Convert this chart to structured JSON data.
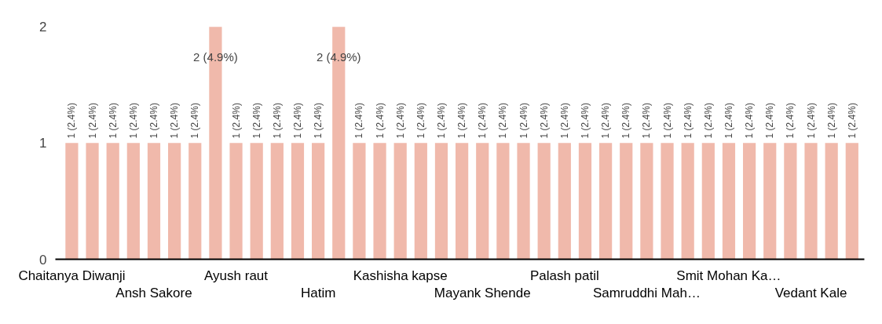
{
  "chart_data": {
    "type": "bar",
    "categories": [
      "Chaitanya Diwanji",
      null,
      null,
      null,
      "Ansh Sakore",
      null,
      null,
      null,
      "Ayush raut",
      null,
      null,
      null,
      "Hatim",
      null,
      null,
      null,
      "Kashisha kapse",
      null,
      null,
      null,
      "Mayank Shende",
      null,
      null,
      null,
      "Palash patil",
      null,
      null,
      null,
      "Samruddhi Mah…",
      null,
      null,
      null,
      "Smit Mohan Ka…",
      null,
      null,
      null,
      "Vedant Kale",
      null,
      null
    ],
    "values": [
      1,
      1,
      1,
      1,
      1,
      1,
      1,
      2,
      1,
      1,
      1,
      1,
      1,
      2,
      1,
      1,
      1,
      1,
      1,
      1,
      1,
      1,
      1,
      1,
      1,
      1,
      1,
      1,
      1,
      1,
      1,
      1,
      1,
      1,
      1,
      1,
      1,
      1,
      1
    ],
    "value_labels": [
      "1 (2.4%)",
      "1 (2.4%)",
      "1 (2.4%)",
      "1 (2.4%)",
      "1 (2.4%)",
      "1 (2.4%)",
      "1 (2.4%)",
      "2 (4.9%)",
      "1 (2.4%)",
      "1 (2.4%)",
      "1 (2.4%)",
      "1 (2.4%)",
      "1 (2.4%)",
      "2 (4.9%)",
      "1 (2.4%)",
      "1 (2.4%)",
      "1 (2.4%)",
      "1 (2.4%)",
      "1 (2.4%)",
      "1 (2.4%)",
      "1 (2.4%)",
      "1 (2.4%)",
      "1 (2.4%)",
      "1 (2.4%)",
      "1 (2.4%)",
      "1 (2.4%)",
      "1 (2.4%)",
      "1 (2.4%)",
      "1 (2.4%)",
      "1 (2.4%)",
      "1 (2.4%)",
      "1 (2.4%)",
      "1 (2.4%)",
      "1 (2.4%)",
      "1 (2.4%)",
      "1 (2.4%)",
      "1 (2.4%)",
      "1 (2.4%)",
      "1 (2.4%)"
    ],
    "color": "#f0b9ab",
    "ylim": [
      0,
      2
    ],
    "yticks": [
      0,
      1,
      2
    ],
    "grid": false
  }
}
